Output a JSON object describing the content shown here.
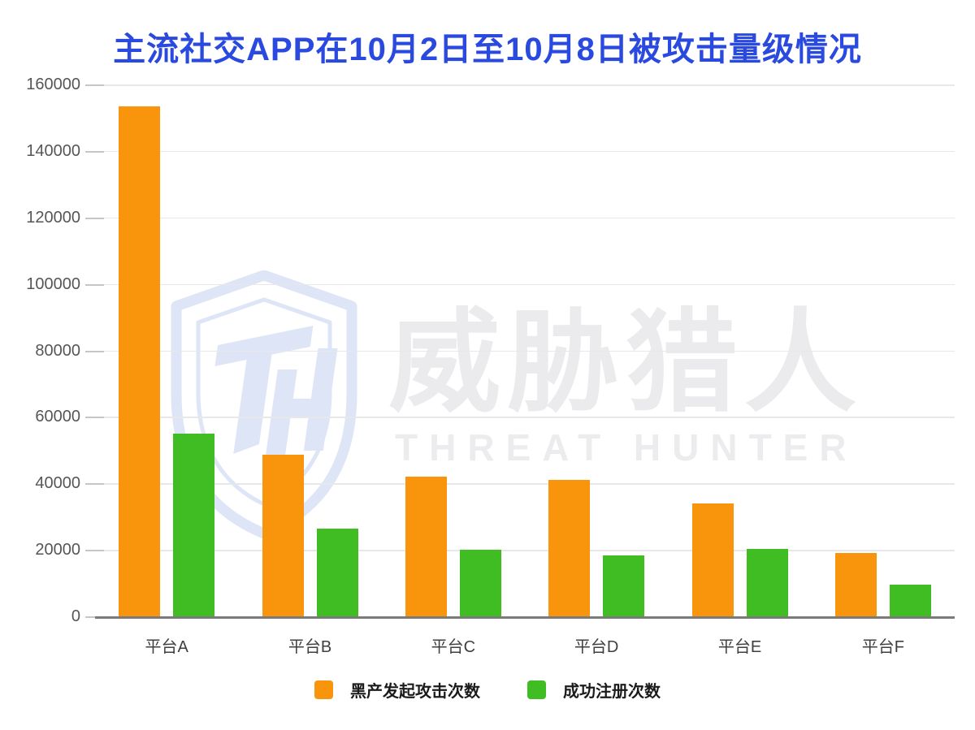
{
  "page": {
    "background": "#ffffff"
  },
  "chart_data": {
    "type": "bar",
    "title": "主流社交APP在10月2日至10月8日被攻击量级情况",
    "title_color": "#2A49DF",
    "categories": [
      "平台A",
      "平台B",
      "平台C",
      "平台D",
      "平台E",
      "平台F"
    ],
    "series": [
      {
        "name": "黑产发起攻击次数",
        "color": "#F8950C",
        "values": [
          153500,
          48500,
          42000,
          41000,
          34000,
          19000
        ]
      },
      {
        "name": "成功注册次数",
        "color": "#3FBD23",
        "values": [
          55000,
          26500,
          20000,
          18300,
          20200,
          9500
        ]
      }
    ],
    "ylim": [
      0,
      160000
    ],
    "ytick_step": 20000,
    "ytick_labels": [
      "0",
      "20000",
      "40000",
      "60000",
      "80000",
      "100000",
      "120000",
      "140000",
      "160000"
    ],
    "xlabel": "",
    "ylabel": "",
    "grid": true,
    "legend_position": "bottom",
    "watermark": {
      "cn": "威胁猎人",
      "en": "THREAT HUNTER",
      "monogram": "TH",
      "shield_color": "#dde5f6",
      "text_color": "#ebebee"
    }
  }
}
